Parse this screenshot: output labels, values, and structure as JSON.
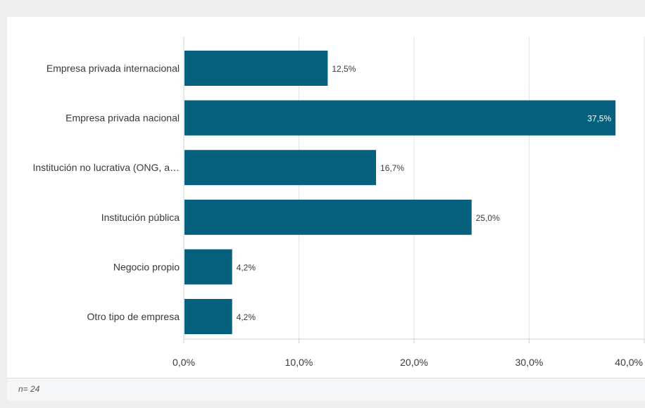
{
  "chart_data": {
    "type": "bar",
    "orientation": "horizontal",
    "categories": [
      "Empresa privada internacional",
      "Empresa privada nacional",
      "Institución no lucrativa (ONG, a…",
      "Institución pública",
      "Negocio propio",
      "Otro tipo de empresa"
    ],
    "values": [
      12.5,
      37.5,
      16.7,
      25.0,
      4.2,
      4.2
    ],
    "value_labels": [
      "12,5%",
      "37,5%",
      "16,7%",
      "25,0%",
      "4,2%",
      "4,2%"
    ],
    "xticks": [
      0,
      10,
      20,
      30,
      40
    ],
    "xtick_labels": [
      "0,0%",
      "10,0%",
      "20,0%",
      "30,0%",
      "40,0%"
    ],
    "xlim": [
      0,
      40
    ],
    "grid": true,
    "bar_color": "#04607d",
    "grid_color": "#e2e2e2"
  },
  "footer": {
    "sample_size": "n= 24"
  }
}
